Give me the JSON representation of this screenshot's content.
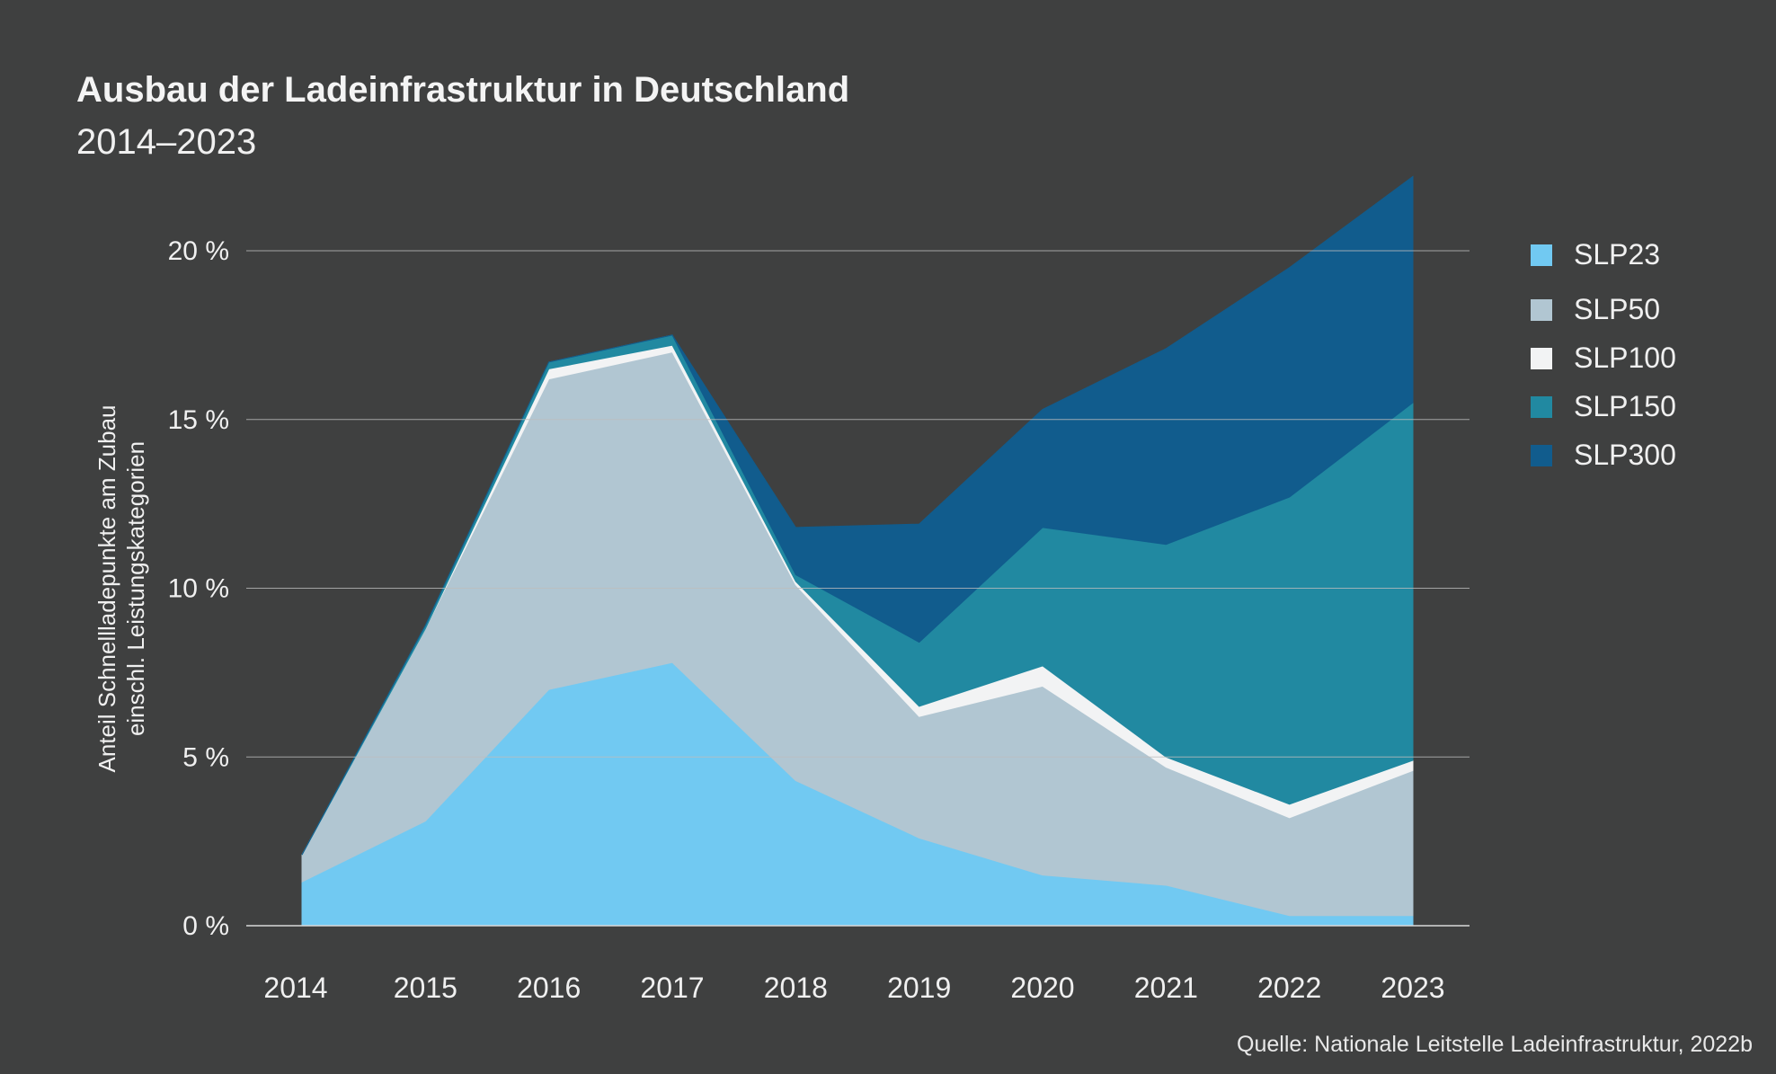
{
  "chart_data": {
    "type": "area",
    "stacked": true,
    "title": "Ausbau der Ladeinfrastruktur in Deutschland",
    "subtitle": "2014–2023",
    "ylabel_line1": "Anteil Schnellladepunkte am Zubau",
    "ylabel_line2": "einschl. Leistungskategorien",
    "xlabel": "",
    "categories": [
      "2014",
      "2015",
      "2016",
      "2017",
      "2018",
      "2019",
      "2020",
      "2021",
      "2022",
      "2023"
    ],
    "ylim": [
      0,
      20
    ],
    "yticks": [
      0,
      5,
      10,
      15,
      20
    ],
    "ytick_labels": [
      "0 %",
      "5 %",
      "10 %",
      "15 %",
      "20 %"
    ],
    "grid": true,
    "legend_position": "right",
    "series": [
      {
        "name": "SLP23",
        "color": "#71c9f2",
        "values": [
          1.3,
          3.1,
          7.0,
          7.8,
          4.3,
          2.6,
          1.5,
          1.2,
          0.3,
          0.3
        ]
      },
      {
        "name": "SLP50",
        "color": "#b1c6d2",
        "values": [
          0.8,
          5.7,
          9.2,
          9.2,
          5.8,
          3.6,
          5.6,
          3.5,
          2.9,
          4.3
        ]
      },
      {
        "name": "SLP100",
        "color": "#f2f3f4",
        "values": [
          0.0,
          0.0,
          0.3,
          0.2,
          0.1,
          0.3,
          0.6,
          0.3,
          0.4,
          0.3
        ]
      },
      {
        "name": "SLP150",
        "color": "#2189a1",
        "values": [
          0.0,
          0.1,
          0.2,
          0.3,
          0.2,
          1.9,
          4.1,
          6.3,
          9.1,
          10.6
        ]
      },
      {
        "name": "SLP300",
        "color": "#115c8d",
        "values": [
          0.0,
          0.0,
          0.0,
          0.0,
          1.4,
          3.5,
          3.5,
          5.8,
          6.8,
          6.7
        ]
      }
    ],
    "source": "Quelle: Nationale Leitstelle Ladeinfrastruktur, 2022b"
  }
}
